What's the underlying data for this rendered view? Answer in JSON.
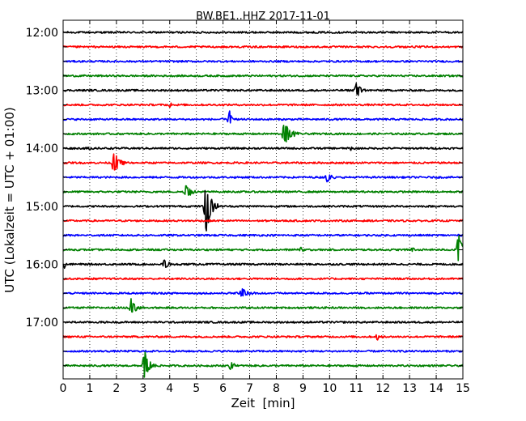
{
  "chart_data": {
    "type": "line",
    "title": "BW.BE1..HHZ 2017-11-01",
    "xlabel": "Zeit  [min]",
    "ylabel": "UTC (Lokalzeit = UTC + 01:00)",
    "xlim": [
      0,
      15
    ],
    "x_ticks": [
      "0",
      "1",
      "2",
      "3",
      "4",
      "5",
      "6",
      "7",
      "8",
      "9",
      "10",
      "11",
      "12",
      "13",
      "14",
      "15"
    ],
    "grid": "dotted vertical lines at each minute",
    "trace_interval_min": 15,
    "row_colors": [
      "#000000",
      "#ff0000",
      "#0000ff",
      "#008000"
    ],
    "hour_labels": [
      {
        "label": "12:00",
        "row": 0
      },
      {
        "label": "13:00",
        "row": 4
      },
      {
        "label": "14:00",
        "row": 8
      },
      {
        "label": "15:00",
        "row": 12
      },
      {
        "label": "16:00",
        "row": 16
      },
      {
        "label": "17:00",
        "row": 20
      }
    ],
    "rows": [
      {
        "start": "12:00",
        "color": "#000000",
        "events": []
      },
      {
        "start": "12:15",
        "color": "#ff0000",
        "events": []
      },
      {
        "start": "12:30",
        "color": "#0000ff",
        "events": []
      },
      {
        "start": "12:45",
        "color": "#008000",
        "events": []
      },
      {
        "start": "13:00",
        "color": "#000000",
        "events": [
          {
            "t": 11.0,
            "amp": 0.45,
            "dur": 0.25
          }
        ]
      },
      {
        "start": "13:15",
        "color": "#ff0000",
        "events": [
          {
            "t": 4.0,
            "amp": 0.15,
            "dur": 0.1
          }
        ]
      },
      {
        "start": "13:30",
        "color": "#0000ff",
        "events": [
          {
            "t": 6.25,
            "amp": 0.5,
            "dur": 0.08
          }
        ]
      },
      {
        "start": "13:45",
        "color": "#008000",
        "events": [
          {
            "t": 8.3,
            "amp": 0.75,
            "dur": 0.35
          }
        ]
      },
      {
        "start": "14:00",
        "color": "#000000",
        "events": [
          {
            "t": 1.0,
            "amp": 0.15,
            "dur": 0.06
          },
          {
            "t": 10.8,
            "amp": 0.15,
            "dur": 0.06
          }
        ]
      },
      {
        "start": "14:15",
        "color": "#ff0000",
        "events": [
          {
            "t": 1.9,
            "amp": 0.6,
            "dur": 0.35
          }
        ]
      },
      {
        "start": "14:30",
        "color": "#0000ff",
        "events": [
          {
            "t": 9.9,
            "amp": 0.3,
            "dur": 0.25
          }
        ]
      },
      {
        "start": "14:45",
        "color": "#008000",
        "events": [
          {
            "t": 4.6,
            "amp": 0.45,
            "dur": 0.3
          }
        ]
      },
      {
        "start": "15:00",
        "color": "#000000",
        "events": [
          {
            "t": 5.35,
            "amp": 1.6,
            "dur": 0.3
          }
        ]
      },
      {
        "start": "15:15",
        "color": "#ff0000",
        "events": []
      },
      {
        "start": "15:30",
        "color": "#0000ff",
        "events": []
      },
      {
        "start": "15:45",
        "color": "#008000",
        "events": [
          {
            "t": 8.9,
            "amp": 0.15,
            "dur": 0.15
          },
          {
            "t": 13.1,
            "amp": 0.15,
            "dur": 0.2
          },
          {
            "t": 14.85,
            "amp": 1.3,
            "dur": 0.2
          }
        ]
      },
      {
        "start": "16:00",
        "color": "#000000",
        "events": [
          {
            "t": 0.05,
            "amp": 0.25,
            "dur": 0.08
          },
          {
            "t": 3.8,
            "amp": 0.25,
            "dur": 0.25
          }
        ]
      },
      {
        "start": "16:15",
        "color": "#ff0000",
        "events": []
      },
      {
        "start": "16:30",
        "color": "#0000ff",
        "events": [
          {
            "t": 6.7,
            "amp": 0.35,
            "dur": 0.3
          }
        ]
      },
      {
        "start": "16:45",
        "color": "#008000",
        "events": [
          {
            "t": 2.55,
            "amp": 0.5,
            "dur": 0.25
          }
        ]
      },
      {
        "start": "17:00",
        "color": "#000000",
        "events": []
      },
      {
        "start": "17:15",
        "color": "#ff0000",
        "events": [
          {
            "t": 11.8,
            "amp": 0.25,
            "dur": 0.1
          }
        ]
      },
      {
        "start": "17:30",
        "color": "#0000ff",
        "events": []
      },
      {
        "start": "17:45",
        "color": "#008000",
        "events": [
          {
            "t": 3.05,
            "amp": 0.9,
            "dur": 0.25
          },
          {
            "t": 6.3,
            "amp": 0.25,
            "dur": 0.15
          }
        ]
      }
    ]
  }
}
